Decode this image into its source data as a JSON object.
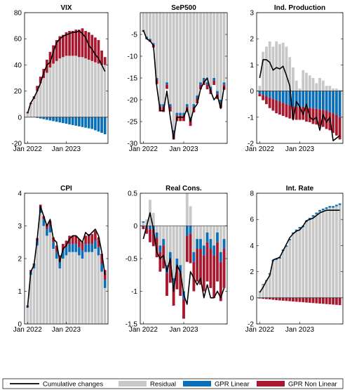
{
  "colors": {
    "residual": "#c8c8c8",
    "gpr_linear": "#0b6fb8",
    "gpr_nonlinear": "#a8182e",
    "cumulative": "#000000"
  },
  "legend": {
    "placement": "bottom",
    "entries": [
      {
        "key": "cumulative",
        "label": "Cumulative changes",
        "kind": "line"
      },
      {
        "key": "residual",
        "label": "Residual",
        "kind": "box"
      },
      {
        "key": "gpr_linear",
        "label": "GPR Linear",
        "kind": "box"
      },
      {
        "key": "gpr_nonlinear",
        "label": "GPR Non Linear",
        "kind": "box"
      }
    ]
  },
  "chart_data": [
    {
      "type": "bar",
      "title": "VIX",
      "ylim": [
        -20,
        80
      ],
      "yticks": [
        -20,
        0,
        20,
        40,
        60,
        80
      ],
      "xticks": [
        {
          "i": 0,
          "label": "Jan 2022"
        },
        {
          "i": 12,
          "label": "Jan 2023"
        }
      ],
      "series": [
        {
          "name": "Residual",
          "values": [
            3,
            10,
            14,
            20,
            26,
            30,
            34,
            38,
            41,
            43,
            45,
            46,
            47,
            47,
            47,
            47,
            46,
            46,
            45,
            44,
            43,
            42,
            41,
            40,
            40
          ]
        },
        {
          "name": "GPR Linear",
          "values": [
            0,
            0,
            0,
            -0.5,
            -1,
            -1.5,
            -2,
            -2.5,
            -3,
            -3.5,
            -4,
            -4.5,
            -5,
            -5.5,
            -6,
            -6.5,
            -7,
            -7.5,
            -8,
            -8.5,
            -9,
            -10,
            -11,
            -12,
            -13
          ]
        },
        {
          "name": "GPR Non Linear",
          "values": [
            1,
            1,
            2,
            4,
            5,
            7,
            10,
            12,
            14,
            16,
            17,
            17,
            18,
            19,
            19,
            20,
            21,
            22,
            21,
            21,
            20,
            19,
            18,
            11,
            6
          ]
        },
        {
          "name": "Cumulative changes",
          "values": [
            3,
            11,
            15,
            20,
            26,
            34,
            40,
            42,
            50,
            57,
            60,
            62,
            63,
            64,
            65,
            65,
            66,
            64,
            61,
            55,
            52,
            48,
            45,
            40,
            35
          ]
        }
      ]
    },
    {
      "type": "bar",
      "title": "SeP500",
      "ylim": [
        -30,
        0
      ],
      "yticks": [
        -30,
        -25,
        -20,
        -15,
        -10,
        -5
      ],
      "xticks": [
        {
          "i": 0,
          "label": "Jan 2022"
        },
        {
          "i": 12,
          "label": "Jan 2023"
        }
      ],
      "series": [
        {
          "name": "Residual",
          "values": [
            -4,
            -5.5,
            -6,
            -7,
            -15,
            -21,
            -21,
            -16,
            -21,
            -27,
            -23,
            -23,
            -23,
            -21,
            -24,
            -21,
            -19,
            -16,
            -15,
            -16,
            -17,
            -15,
            -18,
            -20,
            -16
          ]
        },
        {
          "name": "GPR Linear",
          "values": [
            -0.2,
            -0.3,
            -0.3,
            -0.4,
            -0.4,
            -0.5,
            -0.5,
            -0.5,
            -0.5,
            -0.6,
            -0.6,
            -0.6,
            -0.6,
            -0.6,
            -0.6,
            -0.6,
            -0.6,
            -0.6,
            -0.6,
            -0.6,
            -0.6,
            -0.6,
            -0.6,
            -0.6,
            -0.6
          ]
        },
        {
          "name": "GPR Non Linear",
          "values": [
            -0.2,
            -0.3,
            -0.4,
            -0.6,
            -1,
            -1.2,
            -1.3,
            -1,
            -1.2,
            -1.5,
            -1.3,
            -1.3,
            -1.3,
            -1.2,
            -1.4,
            -1.3,
            -1.2,
            -1,
            -1,
            -1,
            -1.1,
            -1,
            -1.2,
            -1.3,
            -1.1
          ]
        },
        {
          "name": "Cumulative changes",
          "values": [
            -4,
            -6,
            -6.5,
            -7.5,
            -17,
            -22.5,
            -22.5,
            -18,
            -24,
            -29,
            -24,
            -24,
            -24,
            -22,
            -25,
            -22,
            -21,
            -17.5,
            -16,
            -15,
            -18,
            -20,
            -19,
            -22,
            -17
          ]
        }
      ]
    },
    {
      "type": "bar",
      "title": "Ind. Production",
      "ylim": [
        -2,
        3
      ],
      "yticks": [
        -2,
        -1,
        0,
        1,
        2,
        3
      ],
      "xticks": [
        {
          "i": 0,
          "label": "Jan 2022"
        },
        {
          "i": 12,
          "label": "Jan 2023"
        }
      ],
      "series": [
        {
          "name": "Residual",
          "values": [
            0.2,
            1.5,
            1.7,
            1.9,
            1.7,
            1.9,
            1.8,
            1.85,
            1.7,
            1.3,
            0.9,
            0.4,
            0.1,
            0.8,
            0.7,
            0.6,
            0.5,
            0.3,
            0.5,
            0.4,
            0.2,
            0.2,
            0.1,
            0.1,
            0.05
          ]
        },
        {
          "name": "GPR Linear",
          "values": [
            -0.1,
            -0.15,
            -0.2,
            -0.25,
            -0.3,
            -0.35,
            -0.4,
            -0.45,
            -0.5,
            -0.55,
            -0.58,
            -0.6,
            -0.6,
            -0.6,
            -0.62,
            -0.64,
            -0.66,
            -0.68,
            -0.7,
            -0.72,
            -0.75,
            -0.8,
            -0.85,
            -0.9,
            -1
          ]
        },
        {
          "name": "GPR Non Linear",
          "values": [
            -0.1,
            -0.2,
            -0.3,
            -0.4,
            -0.45,
            -0.5,
            -0.5,
            -0.5,
            -0.5,
            -0.5,
            -0.5,
            -0.5,
            -0.5,
            -0.5,
            -0.55,
            -0.55,
            -0.6,
            -0.6,
            -0.65,
            -0.65,
            -0.7,
            -0.7,
            -0.75,
            -0.8,
            -0.85
          ]
        },
        {
          "name": "Cumulative changes",
          "values": [
            0.5,
            1.2,
            1.2,
            1.1,
            0.8,
            0.9,
            0.85,
            0.95,
            0.6,
            0.2,
            -1.1,
            -0.4,
            -0.6,
            -0.9,
            -0.5,
            -1,
            -1.1,
            -1,
            -1.5,
            -0.9,
            -1.2,
            -1,
            -1.9,
            -1.8,
            -1.7
          ]
        }
      ]
    },
    {
      "type": "bar",
      "title": "CPI",
      "ylim": [
        0,
        4
      ],
      "yticks": [
        0,
        1,
        2,
        3,
        4
      ],
      "xticks": [
        {
          "i": 0,
          "label": "Jan 2022"
        },
        {
          "i": 12,
          "label": "Jan 2023"
        }
      ],
      "series": [
        {
          "name": "Residual",
          "values": [
            0.5,
            1.5,
            1.7,
            2.4,
            3.4,
            3.0,
            2.7,
            2.8,
            2.3,
            2.0,
            1.7,
            2.0,
            2.1,
            2.2,
            2.2,
            2.2,
            2.1,
            2.0,
            2.2,
            2.2,
            2.2,
            2.3,
            2.1,
            1.6,
            1.1
          ]
        },
        {
          "name": "GPR Linear",
          "values": [
            0.05,
            0.1,
            0.1,
            0.15,
            0.15,
            0.2,
            0.2,
            0.2,
            0.2,
            0.2,
            0.2,
            0.25,
            0.25,
            0.25,
            0.25,
            0.25,
            0.25,
            0.25,
            0.25,
            0.25,
            0.25,
            0.25,
            0.25,
            0.25,
            0.25
          ]
        },
        {
          "name": "GPR Non Linear",
          "values": [
            0.02,
            0.05,
            0.05,
            0.08,
            0.1,
            0.1,
            0.15,
            0.15,
            0.15,
            0.2,
            0.2,
            0.2,
            0.2,
            0.25,
            0.25,
            0.25,
            0.25,
            0.25,
            0.25,
            0.3,
            0.3,
            0.3,
            0.3,
            0.3,
            0.3
          ]
        },
        {
          "name": "Cumulative changes",
          "values": [
            0.5,
            1.6,
            1.8,
            2.6,
            3.6,
            3.3,
            3.0,
            3.2,
            2.6,
            2.5,
            1.9,
            2.3,
            2.4,
            2.6,
            2.7,
            2.7,
            2.6,
            2.5,
            2.8,
            2.7,
            2.8,
            2.9,
            2.7,
            2.2,
            1.5
          ]
        }
      ]
    },
    {
      "type": "bar",
      "title": "Real Cons.",
      "ylim": [
        -1.5,
        0.5
      ],
      "yticks": [
        -1.5,
        -1,
        -0.5,
        0,
        0.5
      ],
      "xticks": [
        {
          "i": 0,
          "label": "Jan 2022"
        },
        {
          "i": 12,
          "label": "Jan 2023"
        }
      ],
      "series": [
        {
          "name": "Residual",
          "values": [
            0.05,
            0.1,
            0.4,
            0.2,
            -0.1,
            -0.3,
            -0.2,
            -0.6,
            -0.4,
            -0.8,
            -0.5,
            -0.6,
            -1.0,
            0.5,
            0.3,
            -0.4,
            -0.2,
            -0.2,
            -0.3,
            -0.1,
            -0.2,
            -0.3,
            -0.1,
            -0.4,
            -0.2
          ]
        },
        {
          "name": "GPR Linear",
          "values": [
            0.02,
            -0.02,
            -0.05,
            -0.06,
            -0.08,
            -0.1,
            -0.1,
            -0.12,
            -0.12,
            -0.12,
            -0.12,
            -0.12,
            -0.12,
            -0.15,
            -0.12,
            -0.15,
            -0.15,
            -0.15,
            -0.15,
            -0.15,
            -0.15,
            -0.15,
            -0.15,
            -0.15,
            -0.15
          ]
        },
        {
          "name": "GPR Non Linear",
          "values": [
            -0.05,
            -0.1,
            -0.2,
            -0.25,
            -0.3,
            -0.3,
            -0.35,
            -0.35,
            -0.35,
            -0.3,
            -0.35,
            -0.35,
            -0.3,
            -0.4,
            -0.45,
            -0.45,
            -0.5,
            -0.55,
            -0.55,
            -0.6,
            -0.6,
            -0.65,
            -0.6,
            -0.6,
            -0.6
          ]
        },
        {
          "name": "Cumulative changes",
          "values": [
            -0.2,
            0.0,
            0.2,
            -0.05,
            -0.4,
            -0.5,
            -0.45,
            -0.7,
            -0.5,
            -1.0,
            -0.6,
            -0.7,
            -1.05,
            -1.2,
            -0.7,
            -0.8,
            -0.9,
            -0.8,
            -1.1,
            -0.9,
            -1.1,
            -1.1,
            -1.0,
            -1.1,
            -0.95
          ]
        }
      ]
    },
    {
      "type": "bar",
      "title": "Int. Rate",
      "ylim": [
        -2,
        8
      ],
      "yticks": [
        -2,
        0,
        2,
        4,
        6,
        8
      ],
      "xticks": [
        {
          "i": 0,
          "label": "Jan 2022"
        },
        {
          "i": 12,
          "label": "Jan 2023"
        }
      ],
      "series": [
        {
          "name": "Residual",
          "values": [
            0.5,
            1,
            1.3,
            1.8,
            2.8,
            2.9,
            3.0,
            3.6,
            3.9,
            4.4,
            4.9,
            5.1,
            5.3,
            5.4,
            5.8,
            6.0,
            6.2,
            6.4,
            6.6,
            6.7,
            6.8,
            6.9,
            6.9,
            7.0,
            7.1
          ]
        },
        {
          "name": "GPR Linear",
          "values": [
            0.02,
            0.05,
            0.05,
            0.08,
            0.1,
            0.1,
            0.1,
            0.1,
            0.1,
            0.1,
            0.1,
            0.12,
            0.12,
            0.12,
            0.12,
            0.12,
            0.12,
            0.12,
            0.12,
            0.12,
            0.12,
            0.12,
            0.12,
            0.12,
            0.12
          ]
        },
        {
          "name": "GPR Non Linear",
          "values": [
            -0.05,
            -0.08,
            -0.1,
            -0.12,
            -0.15,
            -0.18,
            -0.2,
            -0.22,
            -0.24,
            -0.26,
            -0.28,
            -0.3,
            -0.32,
            -0.34,
            -0.36,
            -0.38,
            -0.4,
            -0.42,
            -0.44,
            -0.46,
            -0.48,
            -0.5,
            -0.52,
            -0.54,
            -0.56
          ]
        },
        {
          "name": "Cumulative changes",
          "values": [
            0.4,
            0.8,
            1.3,
            1.7,
            2.9,
            3.0,
            3.1,
            3.6,
            4.1,
            4.6,
            4.9,
            5.1,
            5.2,
            5.5,
            5.9,
            6.0,
            6.1,
            6.3,
            6.5,
            6.6,
            6.7,
            6.7,
            6.7,
            6.7,
            6.7
          ]
        }
      ]
    }
  ]
}
